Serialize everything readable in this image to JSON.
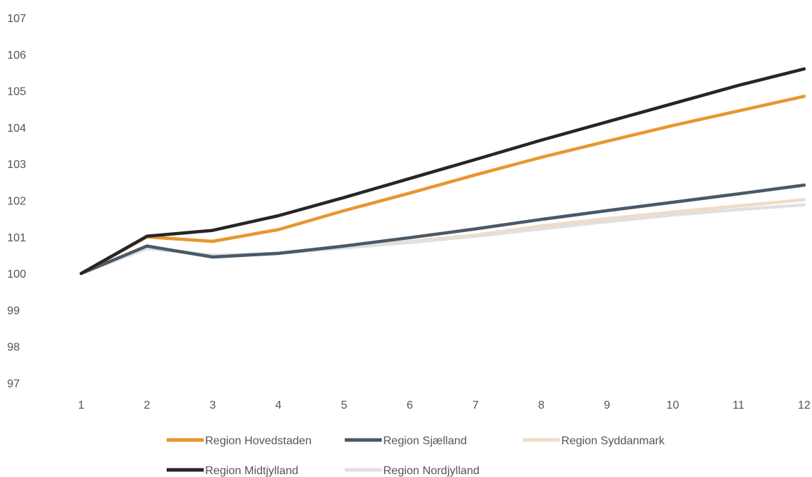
{
  "chart_data": {
    "type": "line",
    "title": "",
    "xlabel": "",
    "ylabel": "",
    "x": [
      1,
      2,
      3,
      4,
      5,
      6,
      7,
      8,
      9,
      10,
      11,
      12
    ],
    "ylim": [
      97,
      107
    ],
    "yticks": [
      97,
      98,
      99,
      100,
      101,
      102,
      103,
      104,
      105,
      106,
      107
    ],
    "grid": false,
    "legend_position": "bottom",
    "series": [
      {
        "name": "Region Hovedstaden",
        "color": "#e8962e",
        "values": [
          100,
          101.0,
          100.88,
          101.2,
          101.72,
          102.2,
          102.7,
          103.18,
          103.62,
          104.05,
          104.45,
          104.85
        ]
      },
      {
        "name": "Region Sjælland",
        "color": "#4a5968",
        "values": [
          100,
          100.75,
          100.45,
          100.55,
          100.75,
          100.98,
          101.22,
          101.48,
          101.72,
          101.95,
          102.18,
          102.42
        ]
      },
      {
        "name": "Region Syddanmark",
        "color": "#f0dcc6",
        "values": [
          100,
          100.7,
          100.5,
          100.55,
          100.72,
          100.88,
          101.05,
          101.3,
          101.5,
          101.68,
          101.85,
          102.02
        ]
      },
      {
        "name": "Region Midtjylland",
        "color": "#262626",
        "values": [
          100,
          101.02,
          101.18,
          101.58,
          102.08,
          102.6,
          103.12,
          103.65,
          104.15,
          104.65,
          105.15,
          105.6
        ]
      },
      {
        "name": "Region Nordjylland",
        "color": "#e0e0e0",
        "values": [
          100,
          100.68,
          100.5,
          100.55,
          100.7,
          100.85,
          101.02,
          101.22,
          101.42,
          101.6,
          101.75,
          101.88
        ]
      }
    ]
  }
}
